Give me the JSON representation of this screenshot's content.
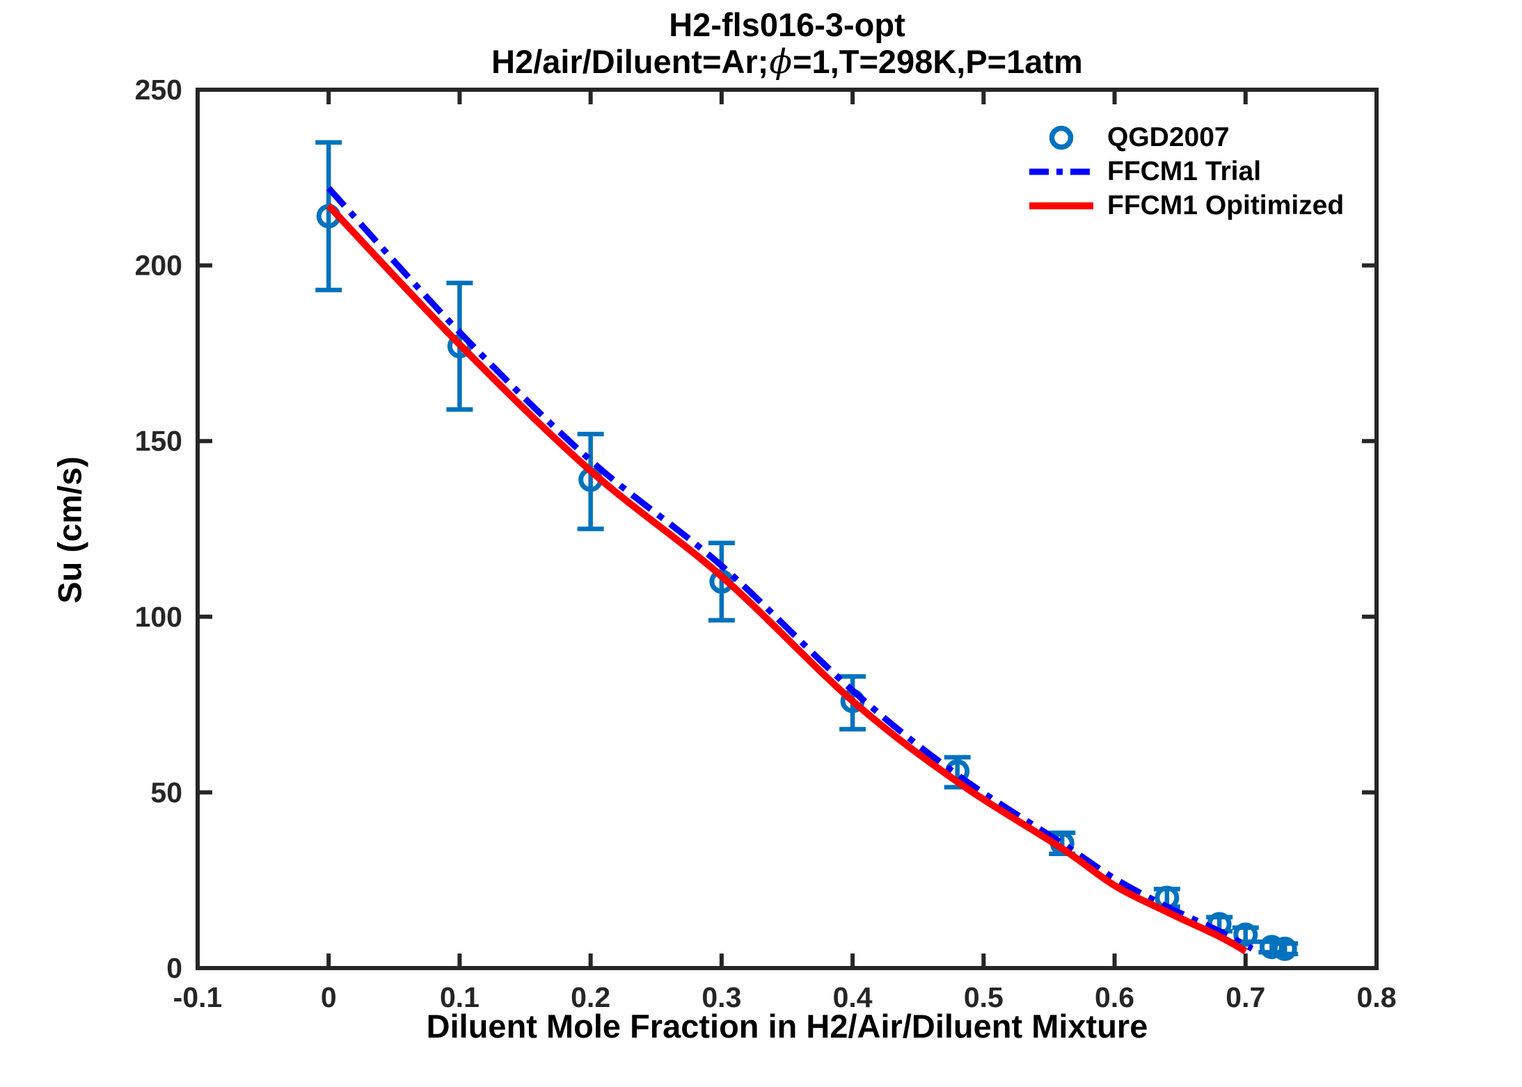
{
  "title": {
    "line1": "H2-fls016-3-opt",
    "line2_prefix": "H2/air/Diluent=Ar;",
    "line2_phi": "ϕ",
    "line2_suffix": "=1,T=298K,P=1atm"
  },
  "axes": {
    "xlabel": "Diluent Mole Fraction in H2/Air/Diluent Mixture",
    "ylabel": "Su (cm/s)",
    "xlim": [
      -0.1,
      0.8
    ],
    "ylim": [
      0,
      250
    ],
    "xtick_values": [
      -0.1,
      0,
      0.1,
      0.2,
      0.3,
      0.4,
      0.5,
      0.6,
      0.7,
      0.8
    ],
    "xtick_labels": [
      "-0.1",
      "0",
      "0.1",
      "0.2",
      "0.3",
      "0.4",
      "0.5",
      "0.6",
      "0.7",
      "0.8"
    ],
    "ytick_values": [
      0,
      50,
      100,
      150,
      200,
      250
    ],
    "ytick_labels": [
      "0",
      "50",
      "100",
      "150",
      "200",
      "250"
    ],
    "axis_color": "#262626",
    "grid": false
  },
  "legend": {
    "position": "top-right-inside",
    "items": [
      {
        "label": "QGD2007",
        "type": "marker",
        "color": "#0072BD"
      },
      {
        "label": "FFCM1 Trial",
        "type": "dashdot-line",
        "color": "#0000FF"
      },
      {
        "label": "FFCM1 Opitimized",
        "type": "solid-line",
        "color": "#FF0000"
      }
    ]
  },
  "chart_data": {
    "type": "scatter",
    "title": "H2-fls016-3-opt",
    "subtitle": "H2/air/Diluent=Ar;ϕ=1,T=298K,P=1atm",
    "xlabel": "Diluent Mole Fraction in H2/Air/Diluent Mixture",
    "ylabel": "Su (cm/s)",
    "xlim": [
      -0.1,
      0.8
    ],
    "ylim": [
      0,
      250
    ],
    "series": [
      {
        "name": "QGD2007",
        "type": "scatter-errorbar",
        "color": "#0072BD",
        "x": [
          0,
          0.1,
          0.2,
          0.3,
          0.4,
          0.48,
          0.56,
          0.64,
          0.68,
          0.7,
          0.72,
          0.73
        ],
        "y": [
          214,
          177,
          139,
          110,
          76,
          56,
          35.5,
          20,
          12.5,
          9.5,
          6,
          5.5
        ],
        "err_plus": [
          21,
          18,
          13,
          11,
          7,
          4,
          3,
          2.5,
          2,
          2,
          1.5,
          1.5
        ],
        "err_minus": [
          21,
          18,
          14,
          11,
          8,
          4.5,
          3,
          2.5,
          2,
          2,
          1.5,
          1.5
        ]
      },
      {
        "name": "FFCM1 Trial",
        "type": "line",
        "style": "dashdot",
        "color": "#0000FF",
        "x": [
          0,
          0.1,
          0.2,
          0.3,
          0.4,
          0.48,
          0.56,
          0.6,
          0.64,
          0.68,
          0.705
        ],
        "y": [
          222,
          181,
          144.5,
          114.5,
          79,
          55,
          35.5,
          25.5,
          17.5,
          10.5,
          5.5
        ]
      },
      {
        "name": "FFCM1 Opitimized",
        "type": "line",
        "style": "solid",
        "color": "#FF0000",
        "x": [
          0,
          0.1,
          0.2,
          0.3,
          0.4,
          0.48,
          0.56,
          0.6,
          0.64,
          0.68,
          0.7
        ],
        "y": [
          217,
          177.5,
          141.5,
          111.5,
          76,
          53,
          34,
          23.5,
          16,
          9,
          4.8
        ]
      }
    ]
  }
}
